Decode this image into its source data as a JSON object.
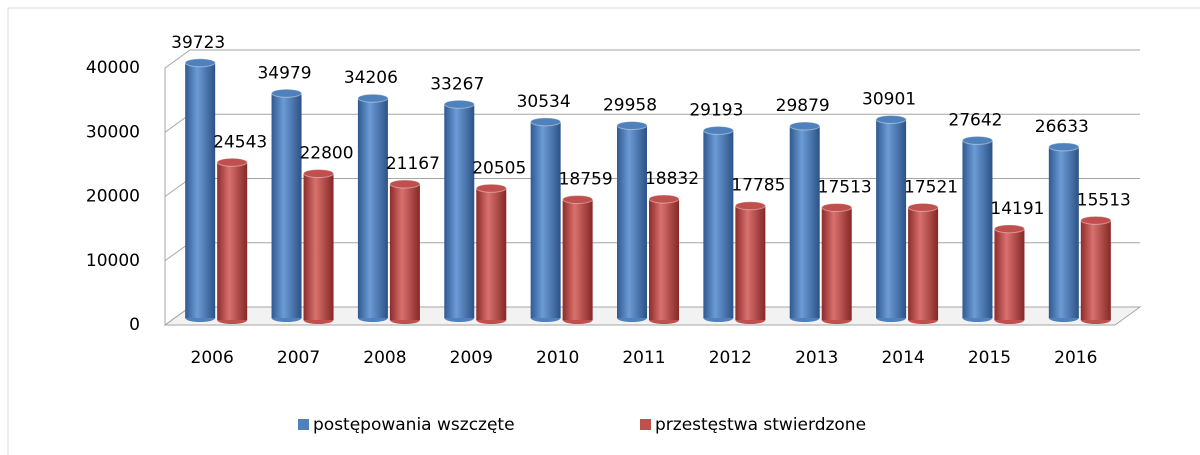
{
  "chart_data": {
    "type": "bar",
    "categories": [
      "2006",
      "2007",
      "2008",
      "2009",
      "2010",
      "2011",
      "2012",
      "2013",
      "2014",
      "2015",
      "2016"
    ],
    "series": [
      {
        "name": "postępowania wszczęte",
        "color": "#4f81bd",
        "values": [
          39723,
          34979,
          34206,
          33267,
          30534,
          29958,
          29193,
          29879,
          30901,
          27642,
          26633
        ]
      },
      {
        "name": "przestęstwa stwierdzone",
        "color": "#c0504d",
        "values": [
          24543,
          22800,
          21167,
          20505,
          18759,
          18832,
          17785,
          17513,
          17521,
          14191,
          15513
        ]
      }
    ],
    "ylim": [
      0,
      40000
    ],
    "yticks": [
      0,
      10000,
      20000,
      30000,
      40000
    ],
    "grid": true,
    "legend": "bottom"
  }
}
